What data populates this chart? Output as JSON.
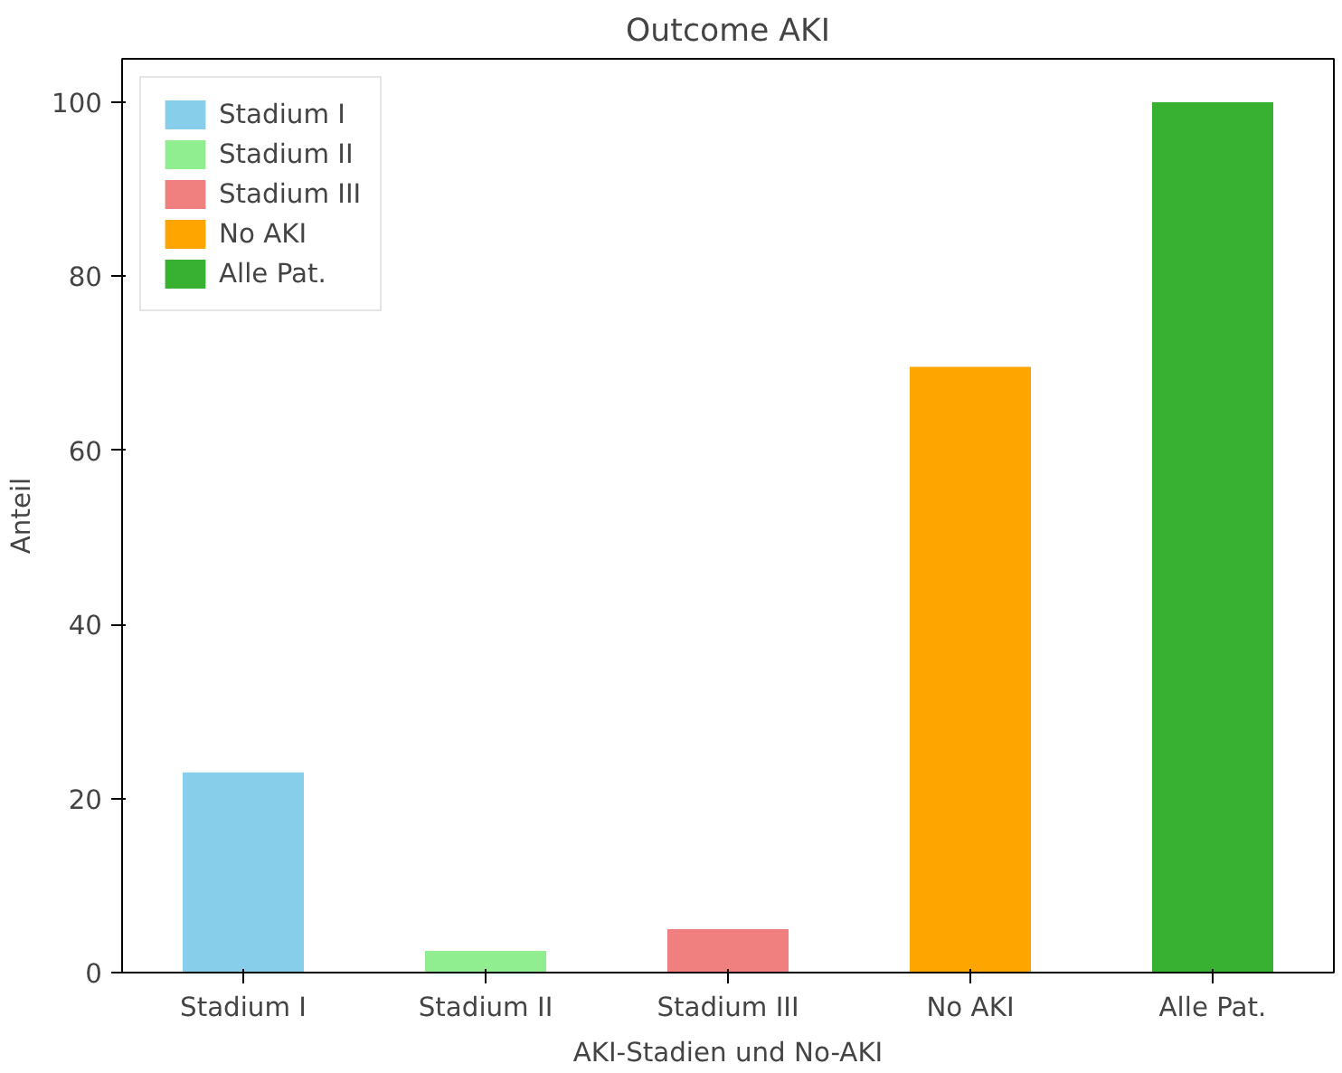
{
  "chart_data": {
    "type": "bar",
    "title": "Outcome AKI",
    "xlabel": "AKI-Stadien und No-AKI",
    "ylabel": "Anteil",
    "categories": [
      "Stadium I",
      "Stadium II",
      "Stadium III",
      "No AKI",
      "Alle Pat."
    ],
    "series": [
      {
        "name": "Stadium I",
        "color": "#87ceeb",
        "values": [
          23,
          null,
          null,
          null,
          null
        ]
      },
      {
        "name": "Stadium II",
        "color": "#90ee90",
        "values": [
          null,
          2.5,
          null,
          null,
          null
        ]
      },
      {
        "name": "Stadium III",
        "color": "#f08080",
        "values": [
          null,
          null,
          5,
          null,
          null
        ]
      },
      {
        "name": "No AKI",
        "color": "#ffa500",
        "values": [
          null,
          null,
          null,
          69.6,
          null
        ]
      },
      {
        "name": "Alle Pat.",
        "color": "#38b032",
        "values": [
          null,
          null,
          null,
          null,
          100
        ]
      }
    ],
    "ylim": [
      0,
      105
    ],
    "yticks": [
      0,
      20,
      40,
      60,
      80,
      100
    ],
    "grid": false,
    "legend": "top left"
  }
}
